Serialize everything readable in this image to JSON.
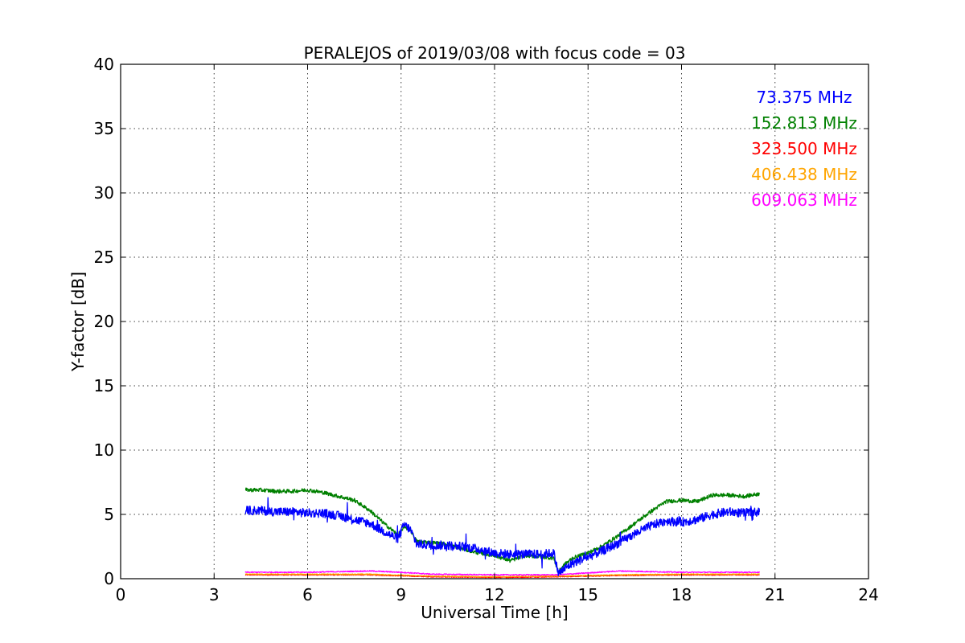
{
  "chart_data": {
    "type": "line",
    "title": "PERALEJOS of 2019/03/08 with focus code = 03",
    "xlabel": "Universal Time [h]",
    "ylabel": "Y-factor [dB]",
    "xlim": [
      0,
      24
    ],
    "ylim": [
      0,
      40
    ],
    "xticks": [
      0,
      3,
      6,
      9,
      12,
      15,
      18,
      21,
      24
    ],
    "yticks": [
      0,
      5,
      10,
      15,
      20,
      25,
      30,
      35,
      40
    ],
    "grid": true,
    "legend_position": "top-right",
    "series": [
      {
        "name": "73.375 MHz",
        "color": "#0000ff",
        "noise": 0.35,
        "x": [
          4.0,
          4.5,
          5.0,
          5.5,
          6.0,
          6.5,
          7.0,
          7.5,
          8.0,
          8.5,
          8.9,
          9.1,
          9.3,
          9.5,
          10.0,
          10.5,
          11.0,
          11.5,
          12.0,
          12.5,
          13.0,
          13.5,
          13.9,
          14.05,
          14.2,
          14.5,
          15.0,
          15.5,
          16.0,
          16.5,
          17.0,
          17.5,
          18.0,
          18.5,
          19.0,
          19.5,
          20.0,
          20.5
        ],
        "y": [
          5.3,
          5.3,
          5.2,
          5.2,
          5.1,
          5.1,
          4.9,
          4.6,
          4.3,
          3.6,
          3.1,
          4.2,
          3.8,
          2.7,
          2.6,
          2.6,
          2.5,
          2.3,
          2.0,
          1.9,
          1.9,
          1.9,
          2.0,
          0.4,
          0.7,
          1.2,
          1.7,
          2.2,
          2.8,
          3.5,
          4.1,
          4.5,
          4.4,
          4.6,
          5.0,
          5.2,
          5.1,
          5.2
        ]
      },
      {
        "name": "152.813 MHz",
        "color": "#008000",
        "noise": 0.15,
        "x": [
          4.0,
          4.5,
          5.0,
          5.5,
          6.0,
          6.5,
          7.0,
          7.5,
          8.0,
          8.5,
          8.9,
          9.1,
          9.3,
          9.5,
          10.0,
          10.5,
          11.0,
          11.5,
          12.0,
          12.5,
          13.0,
          13.5,
          13.9,
          14.05,
          14.2,
          14.5,
          15.0,
          15.5,
          16.0,
          16.5,
          17.0,
          17.5,
          18.0,
          18.5,
          19.0,
          19.5,
          20.0,
          20.5
        ],
        "y": [
          6.9,
          6.9,
          6.8,
          6.8,
          6.9,
          6.7,
          6.4,
          6.1,
          5.3,
          4.2,
          3.4,
          4.0,
          3.8,
          2.9,
          2.8,
          2.7,
          2.3,
          2.0,
          1.8,
          1.4,
          1.8,
          1.7,
          1.6,
          0.5,
          1.0,
          1.6,
          2.0,
          2.6,
          3.4,
          4.3,
          5.2,
          6.0,
          6.1,
          6.0,
          6.5,
          6.5,
          6.4,
          6.6
        ]
      },
      {
        "name": "323.500 MHz",
        "color": "#ff0000",
        "noise": 0.03,
        "x": [
          4.0,
          8.0,
          10.0,
          12.0,
          14.0,
          16.0,
          18.0,
          20.5
        ],
        "y": [
          0.3,
          0.3,
          0.15,
          0.1,
          0.15,
          0.25,
          0.3,
          0.3
        ]
      },
      {
        "name": "406.438 MHz",
        "color": "#ffa500",
        "noise": 0.03,
        "x": [
          4.0,
          8.0,
          10.0,
          12.0,
          14.0,
          16.0,
          18.0,
          20.5
        ],
        "y": [
          0.35,
          0.35,
          0.2,
          0.15,
          0.2,
          0.3,
          0.35,
          0.35
        ]
      },
      {
        "name": "609.063 MHz",
        "color": "#ff00ff",
        "noise": 0.04,
        "x": [
          4.0,
          6.0,
          8.0,
          9.0,
          10.0,
          12.0,
          14.0,
          16.0,
          18.0,
          20.5
        ],
        "y": [
          0.5,
          0.5,
          0.6,
          0.5,
          0.35,
          0.3,
          0.3,
          0.6,
          0.5,
          0.5
        ]
      }
    ]
  }
}
